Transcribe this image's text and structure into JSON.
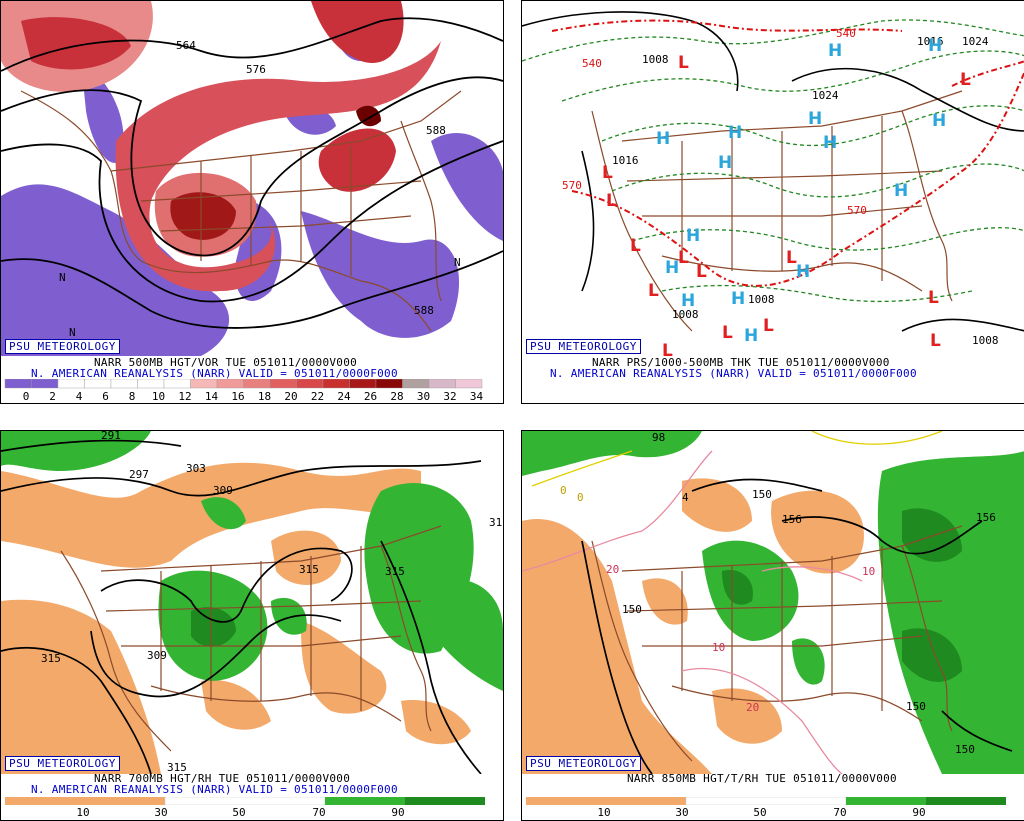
{
  "panels": {
    "p1": {
      "badge": "PSU METEOROLOGY",
      "caption1": "NARR 500MB HGT/VOR TUE 051011/0000V000",
      "caption2": "N. AMERICAN REANALYSIS (NARR) VALID = 051011/0000F000",
      "colorbar_ticks": [
        "0",
        "2",
        "4",
        "6",
        "8",
        "10",
        "12",
        "14",
        "16",
        "18",
        "20",
        "22",
        "24",
        "26",
        "28",
        "30",
        "32",
        "34"
      ],
      "contour_labels": [
        "564",
        "576",
        "588",
        "588"
      ],
      "n_label": "N"
    },
    "p2": {
      "badge": "PSU METEOROLOGY",
      "caption1": "NARR PRS/1000-500MB THK TUE 051011/0000V000",
      "caption2": "N. AMERICAN REANALYSIS (NARR) VALID = 051011/0000F000",
      "contour_labels": [
        "1008",
        "1024",
        "1016",
        "1008",
        "1008",
        "1016",
        "1024",
        "540",
        "570",
        "570",
        "540",
        "1008"
      ],
      "high": "H",
      "low": "L"
    },
    "p3": {
      "badge": "PSU METEOROLOGY",
      "caption1": "NARR 700MB HGT/RH TUE 051011/0000V000",
      "caption2": "N. AMERICAN REANALYSIS (NARR) VALID = 051011/0000F000",
      "colorbar_ticks": [
        "10",
        "30",
        "50",
        "70",
        "90"
      ],
      "contour_labels": [
        "291",
        "297",
        "303",
        "309",
        "315",
        "315",
        "315",
        "309",
        "315",
        "31"
      ]
    },
    "p4": {
      "badge": "PSU METEOROLOGY",
      "caption1": "NARR 850MB HGT/T/RH TUE 051011/0000V000",
      "colorbar_ticks": [
        "10",
        "30",
        "50",
        "70",
        "90"
      ],
      "contour_labels": [
        "150",
        "156",
        "156",
        "150",
        "150",
        "150",
        "20",
        "10",
        "10",
        "20",
        "0",
        "0",
        "4",
        "98"
      ]
    }
  },
  "colors": {
    "vorticity_pos": "#c8303a",
    "vorticity_neg": "#7f5fd0",
    "rh_dry": "#f3a96a",
    "rh_moist": "#33b533",
    "state_borders": "#8b4a2b",
    "high_marker": "#2aa6dc",
    "low_marker": "#e02020",
    "thickness": "#dd1111",
    "pressure_dashed": "#228822"
  }
}
